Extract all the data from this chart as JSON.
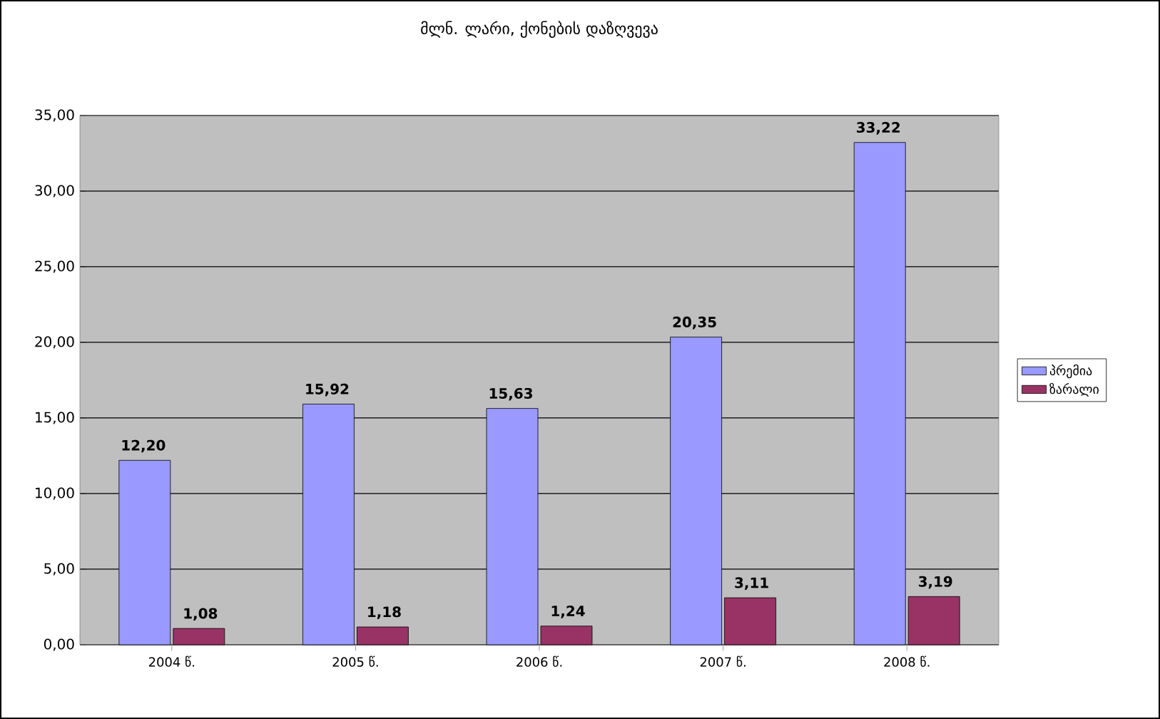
{
  "chart_data": {
    "type": "bar",
    "title": "მლნ. ლარი, ქონების დაზღვევა",
    "categories": [
      "2004 წ.",
      "2005 წ.",
      "2006 წ.",
      "2007 წ.",
      "2008 წ."
    ],
    "series": [
      {
        "name": "პრემია",
        "color": "#9999ff",
        "values": [
          12.2,
          15.92,
          15.63,
          20.35,
          33.22
        ],
        "value_labels": [
          "12,20",
          "15,92",
          "15,63",
          "20,35",
          "33,22"
        ]
      },
      {
        "name": "ზარალი",
        "color": "#993366",
        "values": [
          1.08,
          1.18,
          1.24,
          3.11,
          3.19
        ],
        "value_labels": [
          "1,08",
          "1,18",
          "1,24",
          "3,11",
          "3,19"
        ]
      }
    ],
    "ylim": [
      0,
      35
    ],
    "yticks": [
      {
        "value": 0,
        "label": "0,00"
      },
      {
        "value": 5,
        "label": "5,00"
      },
      {
        "value": 10,
        "label": "10,00"
      },
      {
        "value": 15,
        "label": "15,00"
      },
      {
        "value": 20,
        "label": "20,00"
      },
      {
        "value": 25,
        "label": "25,00"
      },
      {
        "value": 30,
        "label": "30,00"
      },
      {
        "value": 35,
        "label": "35,00"
      }
    ],
    "grid": "y",
    "legend": "right"
  }
}
